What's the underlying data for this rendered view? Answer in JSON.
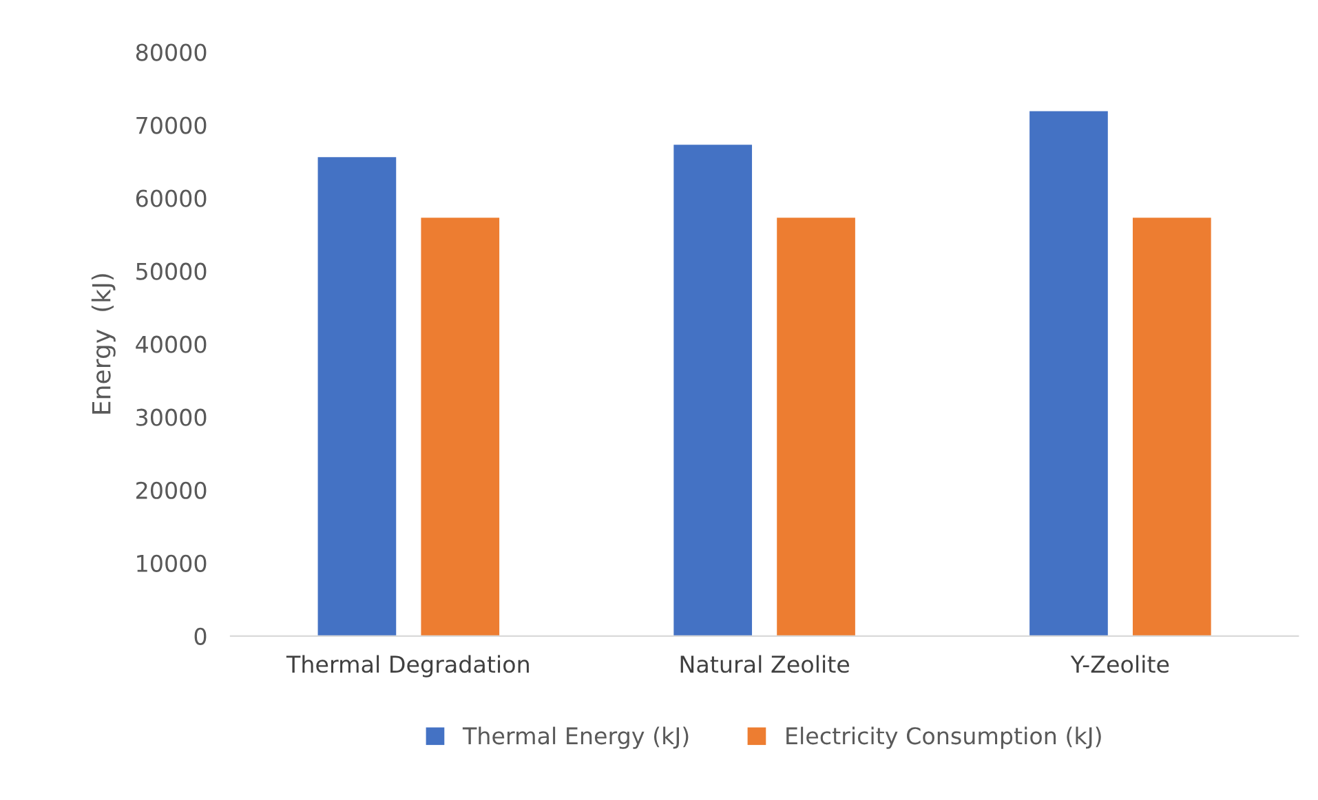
{
  "chart_data": {
    "type": "bar",
    "ylabel": "Energy  (kJ)",
    "categories": [
      "Thermal Degradation",
      "Natural Zeolite",
      "Y-Zeolite"
    ],
    "series": [
      {
        "name": "Thermal Energy (kJ)",
        "color": "#4472c4",
        "values": [
          65600,
          67300,
          71900
        ]
      },
      {
        "name": "Electricity Consumption (kJ)",
        "color": "#ed7d31",
        "values": [
          57300,
          57300,
          57300
        ]
      }
    ],
    "ylim": [
      0,
      80000
    ],
    "yticks": [
      0,
      10000,
      20000,
      30000,
      40000,
      50000,
      60000,
      70000,
      80000
    ],
    "grid": false,
    "legend": "bottom"
  }
}
